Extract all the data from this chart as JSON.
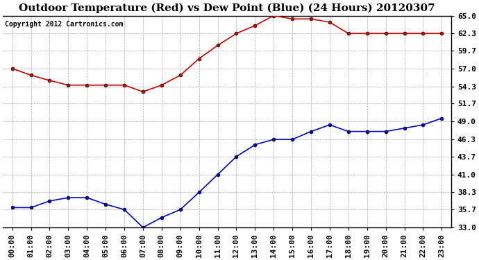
{
  "title": "Outdoor Temperature (Red) vs Dew Point (Blue) (24 Hours) 20120307",
  "copyright": "Copyright 2012 Cartronics.com",
  "hours": [
    "00:00",
    "01:00",
    "02:00",
    "03:00",
    "04:00",
    "05:00",
    "06:00",
    "07:00",
    "08:00",
    "09:00",
    "10:00",
    "11:00",
    "12:00",
    "13:00",
    "14:00",
    "15:00",
    "16:00",
    "17:00",
    "18:00",
    "19:00",
    "20:00",
    "21:00",
    "22:00",
    "23:00"
  ],
  "temp": [
    57.0,
    56.0,
    55.2,
    54.5,
    54.5,
    54.5,
    54.5,
    53.5,
    54.5,
    56.0,
    58.5,
    60.5,
    62.3,
    63.5,
    65.0,
    64.5,
    64.5,
    64.0,
    62.3,
    62.3,
    62.3,
    62.3,
    62.3,
    62.3
  ],
  "dew": [
    36.0,
    36.0,
    37.0,
    37.5,
    37.5,
    36.5,
    35.7,
    33.0,
    34.5,
    35.7,
    38.3,
    41.0,
    43.7,
    45.5,
    46.3,
    46.3,
    47.5,
    48.5,
    47.5,
    47.5,
    47.5,
    48.0,
    48.5,
    49.5
  ],
  "temp_color": "#cc0000",
  "dew_color": "#0000cc",
  "bg_color": "#ffffff",
  "plot_bg": "#ffffff",
  "grid_color": "#aaaaaa",
  "title_color": "#000000",
  "copyright_color": "#000000",
  "ylim_min": 33.0,
  "ylim_max": 65.0,
  "yticks": [
    33.0,
    35.7,
    38.3,
    41.0,
    43.7,
    46.3,
    49.0,
    51.7,
    54.3,
    57.0,
    59.7,
    62.3,
    65.0
  ],
  "title_fontsize": 11,
  "copyright_fontsize": 7,
  "tick_fontsize": 8,
  "marker": "o",
  "linewidth": 1.2,
  "markersize": 3.5
}
